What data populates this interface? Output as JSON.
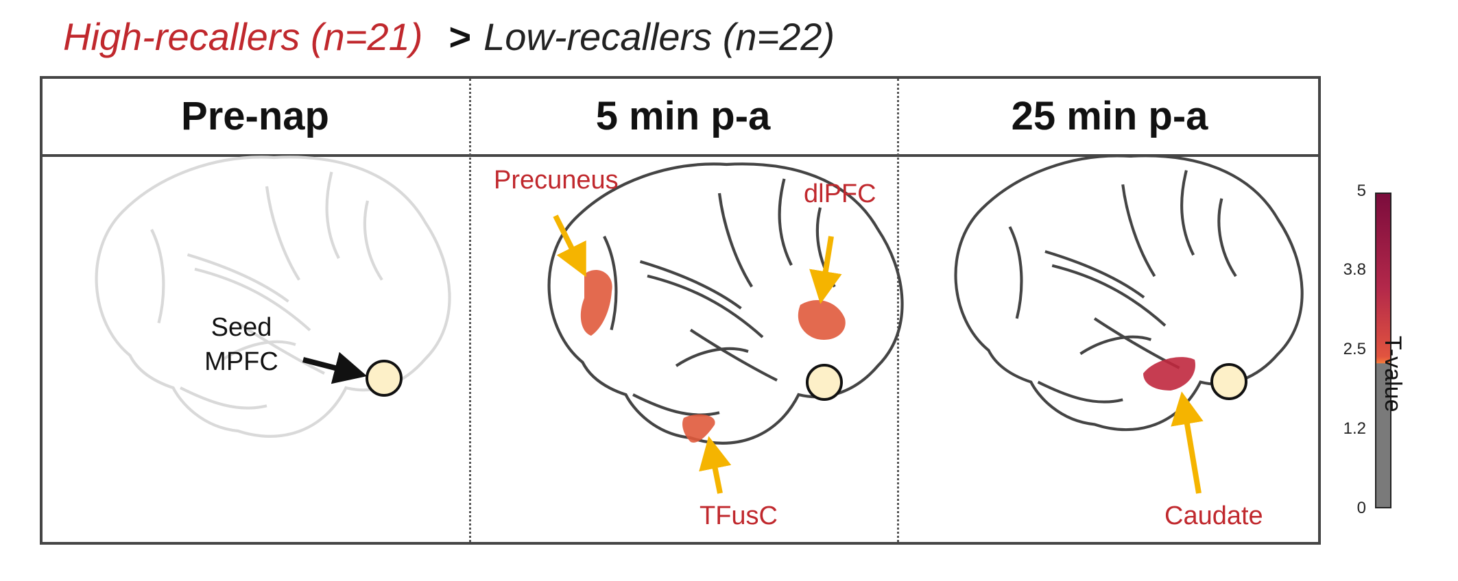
{
  "title": {
    "high": "High-recallers (n=21)",
    "op": ">",
    "low": "Low-recallers (n=22)",
    "high_color": "#c0282d"
  },
  "panels": [
    {
      "header": "Pre-nap",
      "labels": [
        "Seed",
        "MPFC"
      ]
    },
    {
      "header": "5 min p-a",
      "labels": [
        "Precuneus",
        "dlPFC",
        "TFusC"
      ]
    },
    {
      "header": "25 min p-a",
      "labels": [
        "Caudate"
      ]
    }
  ],
  "colorbar": {
    "label": "T-value",
    "ticks": [
      "5",
      "3.8",
      "2.5",
      "1.2",
      "0"
    ],
    "colors": {
      "high": "#7b0c3c",
      "mid": "#e1543f",
      "threshold": "#f57a3c",
      "below": "#7a7a7a"
    }
  },
  "colors": {
    "arrow": "#f5b400",
    "region_label": "#c0282d",
    "seed": "#fdf0c8"
  }
}
